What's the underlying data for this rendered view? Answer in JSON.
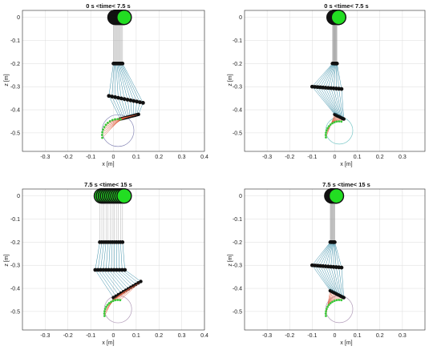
{
  "chart_data": [
    {
      "type": "scatter",
      "title": "0 s <time< 7.5 s",
      "xlabel": "x [m]",
      "ylabel": "z [m]",
      "xlim": [
        -0.4,
        0.4
      ],
      "ylim": [
        -0.58,
        0.03
      ],
      "xticks": [
        "-0.3",
        "-0.2",
        "-0.1",
        "0",
        "0.1",
        "0.2",
        "0.3",
        "0.4"
      ],
      "xtick_values": [
        -0.3,
        -0.2,
        -0.1,
        0,
        0.1,
        0.2,
        0.3,
        0.4
      ],
      "yticks": [
        "0",
        "-0.1",
        "-0.2",
        "-0.3",
        "-0.4",
        "-0.5"
      ],
      "ytick_values": [
        0,
        -0.1,
        -0.2,
        -0.3,
        -0.4,
        -0.5
      ],
      "grid": true,
      "model": {
        "hip_x": [
          0.0,
          0.04
        ],
        "knee_x": [
          -0.02,
          0.13
        ],
        "knee_z": [
          -0.34,
          -0.37
        ],
        "ankle_x": [
          0.03,
          0.11
        ],
        "ankle_z": [
          -0.44,
          -0.42
        ]
      },
      "circle": {
        "cx": 0.02,
        "cz": -0.49,
        "r": 0.07
      },
      "colors": {
        "body": "#111111",
        "top": "#22dd22",
        "leg": "#3a8fa8",
        "foot": "#e05a3a",
        "joint": "#3ac83a",
        "circle": "#8a8ab8"
      }
    },
    {
      "type": "scatter",
      "title": "0 s <time< 7.5 s",
      "xlabel": "x [m]",
      "ylabel": "z [m]",
      "xlim": [
        -0.4,
        0.4
      ],
      "ylim": [
        -0.58,
        0.03
      ],
      "xticks": [
        "-0.3",
        "-0.2",
        "-0.1",
        "0",
        "0.1",
        "0.2",
        "0.3"
      ],
      "xtick_values": [
        -0.3,
        -0.2,
        -0.1,
        0,
        0.1,
        0.2,
        0.3
      ],
      "yticks": [
        "0",
        "-0.1",
        "-0.2",
        "-0.3",
        "-0.4",
        "-0.5"
      ],
      "ytick_values": [
        0,
        -0.1,
        -0.2,
        -0.3,
        -0.4,
        -0.5
      ],
      "grid": true,
      "model": {
        "hip_x": [
          -0.01,
          0.01
        ],
        "knee_x": [
          -0.1,
          0.03
        ],
        "knee_z": [
          -0.3,
          -0.31
        ],
        "ankle_x": [
          0.0,
          0.04
        ],
        "ankle_z": [
          -0.42,
          -0.44
        ]
      },
      "circle": {
        "cx": 0.02,
        "cz": -0.49,
        "r": 0.06
      },
      "colors": {
        "body": "#111111",
        "top": "#22dd22",
        "leg": "#3a8fa8",
        "foot": "#e05a3a",
        "joint": "#3ac83a",
        "circle": "#7ac8c8"
      }
    },
    {
      "type": "scatter",
      "title": "7.5 s <time< 15 s",
      "xlabel": "x [m]",
      "ylabel": "z [m]",
      "xlim": [
        -0.4,
        0.4
      ],
      "ylim": [
        -0.58,
        0.03
      ],
      "xticks": [
        "-0.3",
        "-0.2",
        "-0.1",
        "0",
        "0.1",
        "0.2",
        "0.3",
        "0.4"
      ],
      "xtick_values": [
        -0.3,
        -0.2,
        -0.1,
        0,
        0.1,
        0.2,
        0.3,
        0.4
      ],
      "yticks": [
        "0",
        "-0.1",
        "-0.2",
        "-0.3",
        "-0.4",
        "-0.5"
      ],
      "ytick_values": [
        0,
        -0.1,
        -0.2,
        -0.3,
        -0.4,
        -0.5
      ],
      "grid": true,
      "model": {
        "hip_x": [
          -0.06,
          0.04
        ],
        "knee_x": [
          -0.08,
          0.05
        ],
        "knee_z": [
          -0.32,
          -0.32
        ],
        "ankle_x": [
          0.0,
          0.12
        ],
        "ankle_z": [
          -0.44,
          -0.37
        ]
      },
      "circle": {
        "cx": 0.02,
        "cz": -0.49,
        "r": 0.06
      },
      "colors": {
        "body": "#111111",
        "top": "#22dd22",
        "leg": "#3a8fa8",
        "foot": "#e05a3a",
        "joint": "#3ac83a",
        "circle": "#b09ab8"
      }
    },
    {
      "type": "scatter",
      "title": "7.5 s <time< 15 s",
      "xlabel": "x [m]",
      "ylabel": "z [m]",
      "xlim": [
        -0.4,
        0.4
      ],
      "ylim": [
        -0.58,
        0.03
      ],
      "xticks": [
        "-0.3",
        "-0.2",
        "-0.1",
        "0",
        "0.1",
        "0.2",
        "0.3"
      ],
      "xtick_values": [
        -0.3,
        -0.2,
        -0.1,
        0,
        0.1,
        0.2,
        0.3
      ],
      "yticks": [
        "0",
        "-0.1",
        "-0.2",
        "-0.3",
        "-0.4",
        "-0.5"
      ],
      "ytick_values": [
        0,
        -0.1,
        -0.2,
        -0.3,
        -0.4,
        -0.5
      ],
      "grid": true,
      "model": {
        "hip_x": [
          -0.02,
          0.0
        ],
        "knee_x": [
          -0.1,
          0.03
        ],
        "knee_z": [
          -0.3,
          -0.31
        ],
        "ankle_x": [
          -0.02,
          0.04
        ],
        "ankle_z": [
          -0.41,
          -0.44
        ]
      },
      "circle": {
        "cx": 0.02,
        "cz": -0.49,
        "r": 0.06
      },
      "colors": {
        "body": "#111111",
        "top": "#22dd22",
        "leg": "#3a8fa8",
        "foot": "#e05a3a",
        "joint": "#3ac83a",
        "circle": "#b09ab8"
      }
    }
  ]
}
